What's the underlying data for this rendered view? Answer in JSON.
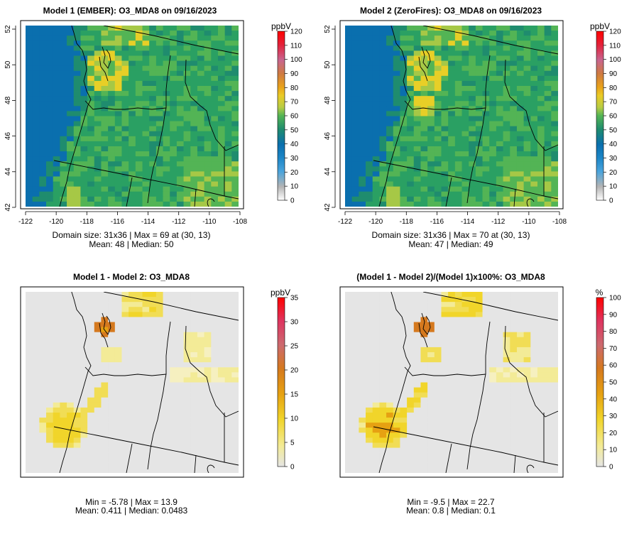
{
  "chart_data": [
    {
      "type": "heatmap",
      "title": "Model 1 (EMBER): O3_MDA8 on 09/16/2023",
      "unit": "ppbV",
      "x_ticks": [
        "-122",
        "-120",
        "-118",
        "-116",
        "-114",
        "-112",
        "-110",
        "-108"
      ],
      "y_ticks": [
        "42",
        "44",
        "46",
        "48",
        "50",
        "52"
      ],
      "xlim": [
        -122,
        -108
      ],
      "ylim": [
        42,
        52.2
      ],
      "colorbar": {
        "ticks": [
          "0",
          "10",
          "20",
          "30",
          "40",
          "50",
          "60",
          "70",
          "80",
          "90",
          "100",
          "110",
          "120"
        ],
        "min": 0,
        "max": 120
      },
      "stats_line1": "Domain size: 31x36 | Max = 69 at (30, 13)",
      "stats_line2": "Mean: 48 |  Median: 50",
      "grid_dims": [
        31,
        36
      ],
      "domain_max": 69,
      "mean": 48,
      "median": 50
    },
    {
      "type": "heatmap",
      "title": "Model 2 (ZeroFires): O3_MDA8 on 09/16/2023",
      "unit": "ppbV",
      "x_ticks": [
        "-122",
        "-120",
        "-118",
        "-116",
        "-114",
        "-112",
        "-110",
        "-108"
      ],
      "y_ticks": [
        "42",
        "44",
        "46",
        "48",
        "50",
        "52"
      ],
      "xlim": [
        -122,
        -108
      ],
      "ylim": [
        42,
        52.2
      ],
      "colorbar": {
        "ticks": [
          "0",
          "10",
          "20",
          "30",
          "40",
          "50",
          "60",
          "70",
          "80",
          "90",
          "100",
          "110",
          "120"
        ],
        "min": 0,
        "max": 120
      },
      "stats_line1": "Domain size: 31x36 | Max = 70 at (30, 13)",
      "stats_line2": "Mean: 47 |  Median: 49",
      "grid_dims": [
        31,
        36
      ],
      "domain_max": 70,
      "mean": 47,
      "median": 49
    },
    {
      "type": "heatmap",
      "title": "Model 1 - Model 2: O3_MDA8",
      "unit": "ppbV",
      "colorbar": {
        "ticks": [
          "0",
          "5",
          "10",
          "15",
          "20",
          "25",
          "30",
          "35"
        ],
        "min": 0,
        "max": 35
      },
      "stats_line1": "Min = -5.78 | Max = 13.9",
      "stats_line2": "Mean: 0.411 |  Median: 0.0483",
      "min": -5.78,
      "max": 13.9,
      "mean": 0.411,
      "median": 0.0483
    },
    {
      "type": "heatmap",
      "title": "(Model 1 - Model 2)/(Model 1)x100%: O3_MDA8",
      "unit": "%",
      "colorbar": {
        "ticks": [
          "0",
          "10",
          "20",
          "30",
          "40",
          "50",
          "60",
          "70",
          "80",
          "90",
          "100"
        ],
        "min": 0,
        "max": 100
      },
      "stats_line1": "Min = -9.5 | Max = 22.7",
      "stats_line2": "Mean: 0.8 |  Median: 0.1",
      "min": -9.5,
      "max": 22.7,
      "mean": 0.8,
      "median": 0.1
    }
  ],
  "colors": {
    "absolute_scale": [
      "#c8c8c8",
      "#3a8fd0",
      "#0a73b4",
      "#1f8c6e",
      "#2aa063",
      "#53b455",
      "#a6c846",
      "#e8cf27",
      "#e9a21b",
      "#ce7a43",
      "#c8658f",
      "#e3223a",
      "#ff0000"
    ],
    "difference_scale": [
      "#e5e5e5",
      "#f3eb97",
      "#f1d52a",
      "#e6a112",
      "#d5791e",
      "#cc6a6f",
      "#de3560",
      "#ff0000"
    ]
  }
}
